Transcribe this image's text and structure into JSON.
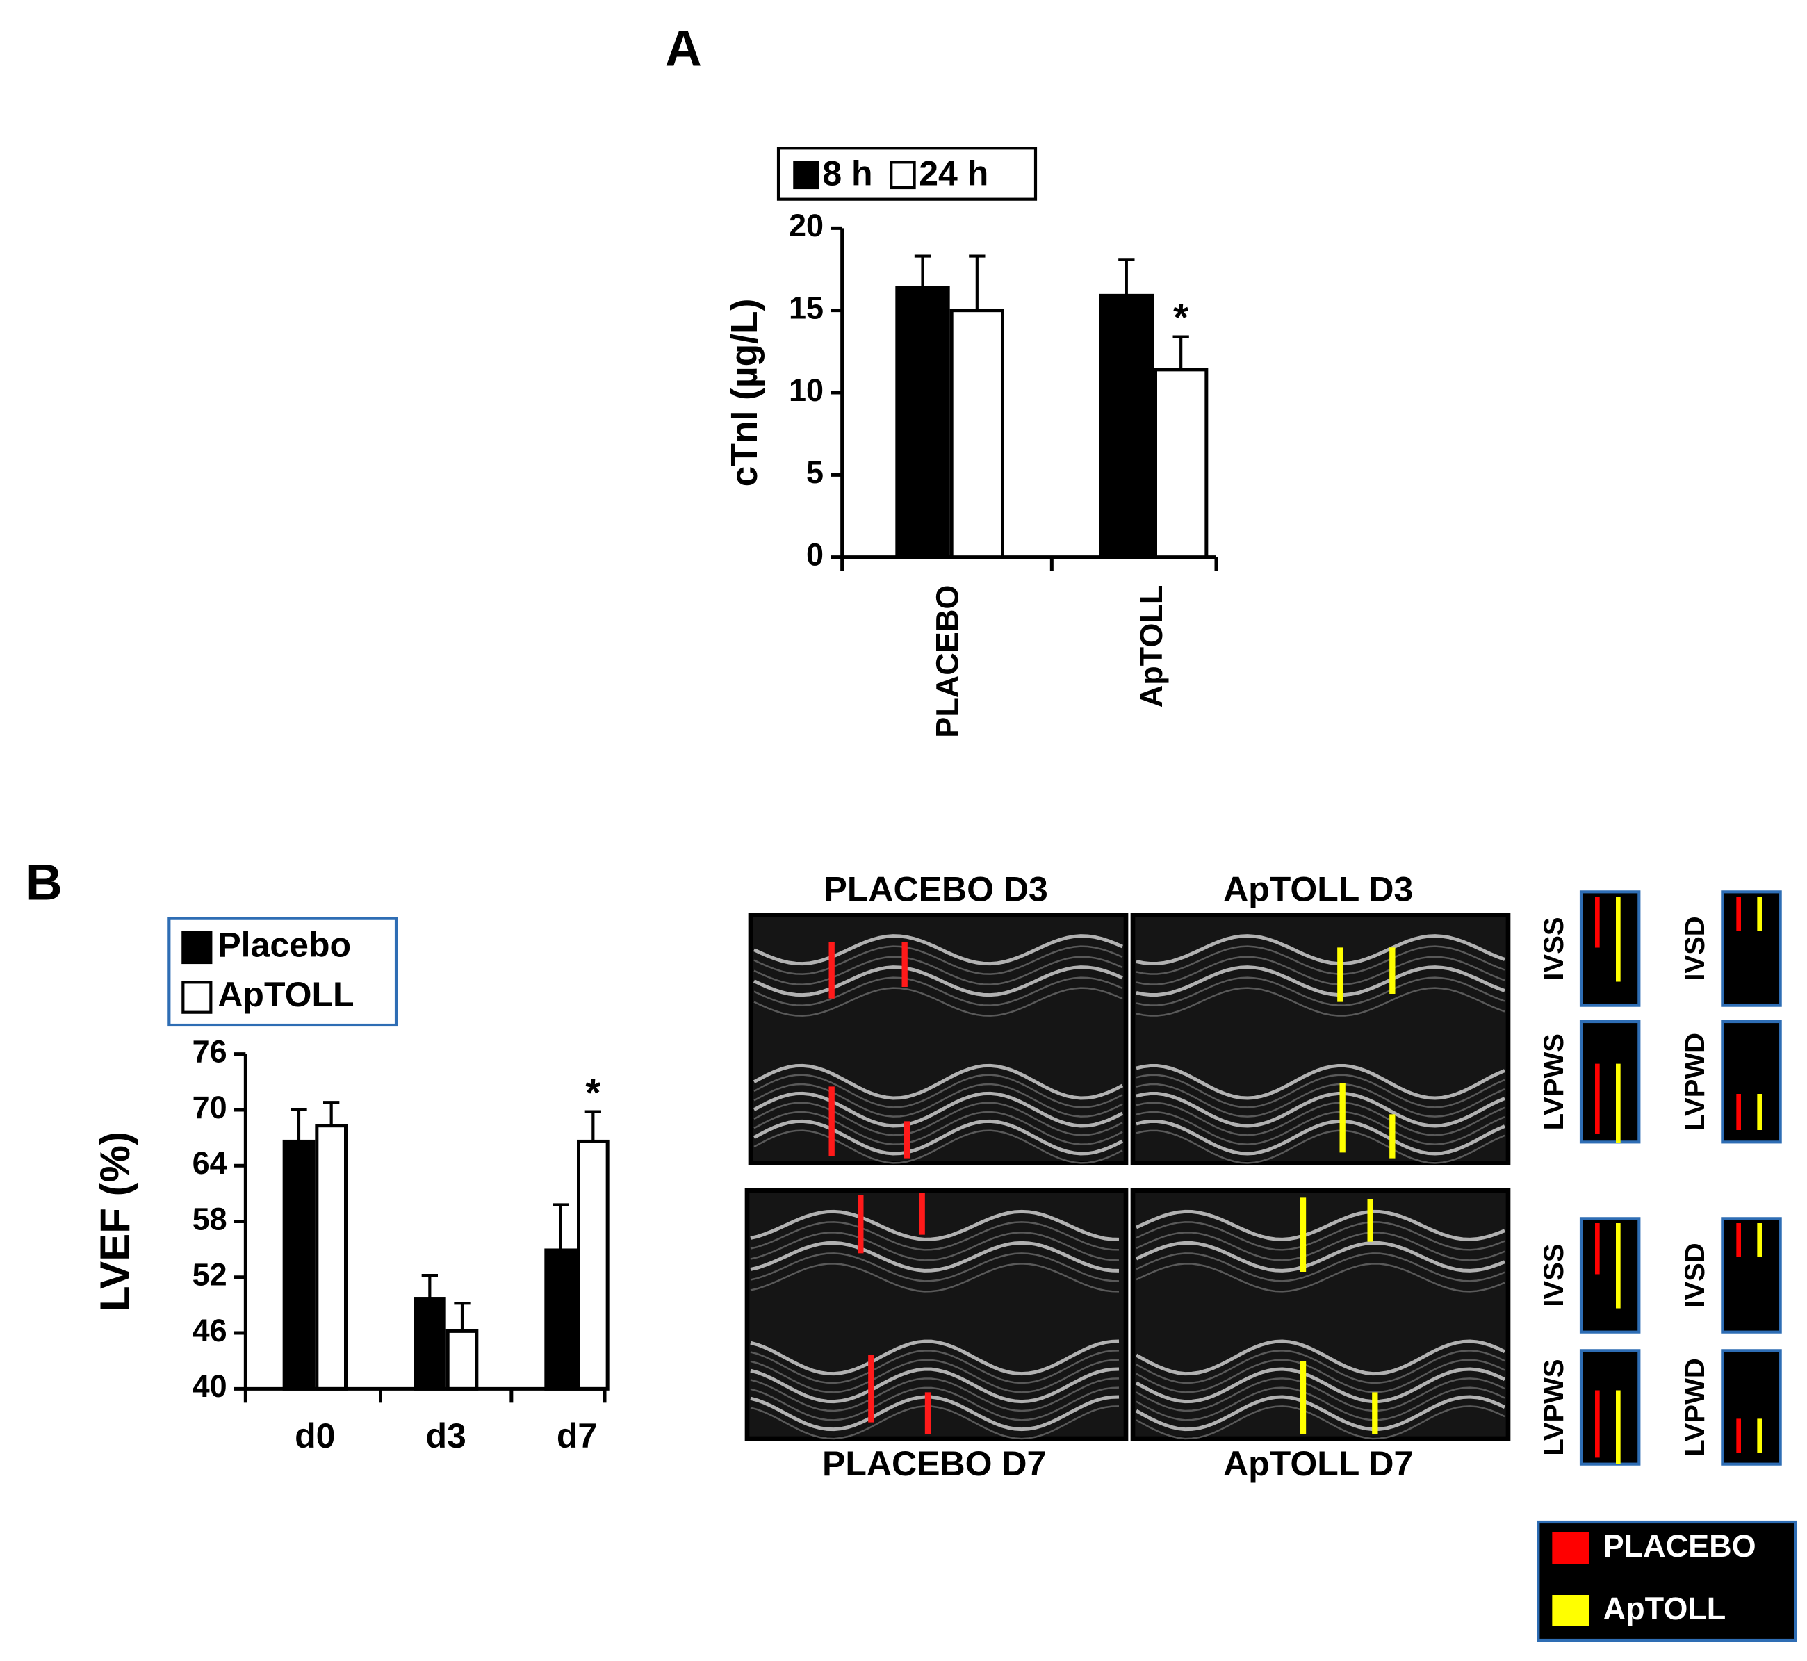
{
  "chart_data": [
    {
      "type": "bar",
      "y_label": "cTnI (µg/L)",
      "categories": [
        "PLACEBO",
        "ApTOLL"
      ],
      "series": [
        {
          "name": "8 h",
          "color": "#000000",
          "values": [
            16.4,
            15.9
          ],
          "errors": [
            1.9,
            2.2
          ],
          "annotations": [
            null,
            null
          ]
        },
        {
          "name": "24 h",
          "color": "#ffffff",
          "values": [
            15.0,
            11.4
          ],
          "errors": [
            3.3,
            2.0
          ],
          "annotations": [
            null,
            "*"
          ]
        }
      ],
      "ylim": [
        0,
        20
      ],
      "yticks": [
        0,
        5,
        10,
        15,
        20
      ],
      "legend": "top"
    },
    {
      "type": "bar",
      "y_label": "LVEF (%)",
      "categories": [
        "d0",
        "d3",
        "d7"
      ],
      "series": [
        {
          "name": "Placebo",
          "color": "#000000",
          "values": [
            66.6,
            49.7,
            54.9
          ],
          "errors": [
            3.4,
            2.5,
            4.9
          ],
          "annotations": [
            null,
            null,
            null
          ]
        },
        {
          "name": "ApTOLL",
          "color": "#ffffff",
          "values": [
            68.3,
            46.2,
            66.6
          ],
          "errors": [
            2.5,
            3.0,
            3.2
          ],
          "annotations": [
            null,
            null,
            "*"
          ]
        }
      ],
      "ylim": [
        40,
        76
      ],
      "yticks": [
        40,
        46,
        52,
        58,
        64,
        70,
        76
      ],
      "legend": "top-left"
    }
  ],
  "figure": {
    "panel_a": "A",
    "panel_b": "B",
    "echo_titles": [
      "PLACEBO D3",
      "ApTOLL D3",
      "PLACEBO D7",
      "ApTOLL D7"
    ],
    "measures": [
      "IVSS",
      "IVSD",
      "LVPWS",
      "LVPWD"
    ],
    "legend": [
      {
        "name": "PLACEBO",
        "color": "#ff0000"
      },
      {
        "name": "ApTOLL",
        "color": "#ffff00"
      }
    ]
  }
}
